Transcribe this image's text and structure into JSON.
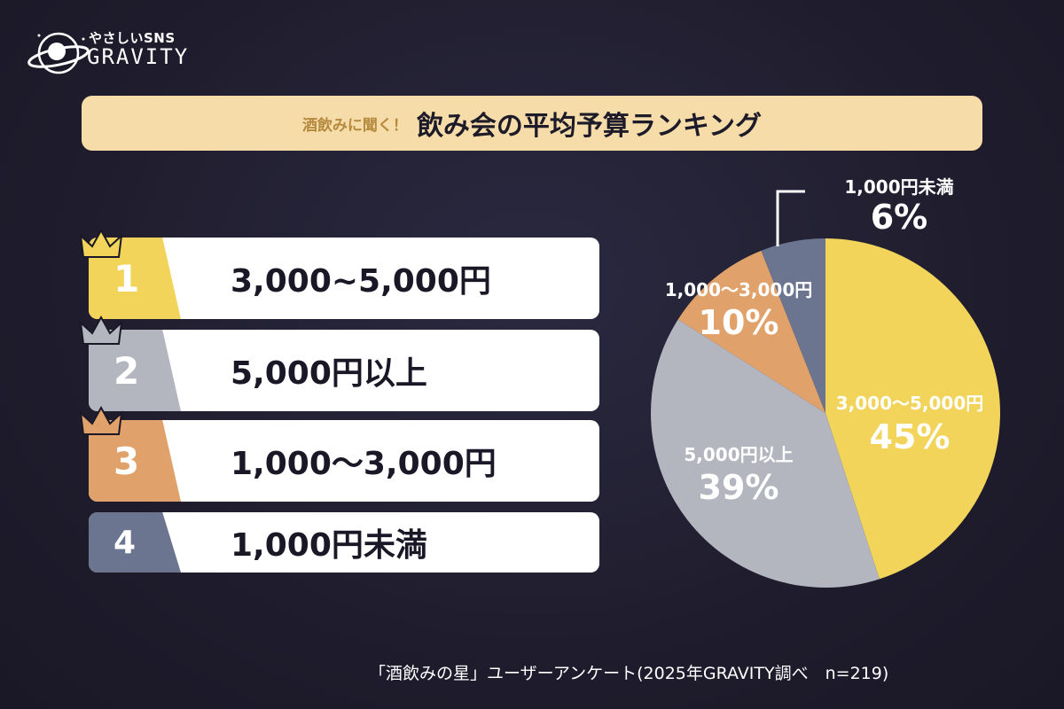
{
  "brand": {
    "tagline": "やさしいSNS",
    "name": "GRAVITY",
    "icon": "planet-icon"
  },
  "header": {
    "pre_title": "酒飲みに聞く！",
    "title": "飲み会の平均予算ランキング"
  },
  "ranking": [
    {
      "rank": "1",
      "label": "3,000~5,000円",
      "color": "#f2d45a",
      "crown_color": "#f2d45a"
    },
    {
      "rank": "2",
      "label": "5,000円以上",
      "color": "#b3b6bf",
      "crown_color": "#b3b6bf"
    },
    {
      "rank": "3",
      "label": "1,000〜3,000円",
      "color": "#e0a26a",
      "crown_color": "#e0a26a"
    },
    {
      "rank": "4",
      "label": "1,000円未満",
      "color": "#6b7590",
      "crown_color": null
    }
  ],
  "chart_data": {
    "type": "pie",
    "title": "",
    "slices": [
      {
        "label": "3,000〜5,000円",
        "percent_label": "45%",
        "value": 45,
        "color": "#f2d45a"
      },
      {
        "label": "5,000円以上",
        "percent_label": "39%",
        "value": 39,
        "color": "#b3b6bf"
      },
      {
        "label": "1,000〜3,000円",
        "percent_label": "10%",
        "value": 10,
        "color": "#e0a26a"
      },
      {
        "label": "1,000円未満",
        "percent_label": "6%",
        "value": 6,
        "color": "#6b7590"
      }
    ],
    "start": "top",
    "direction": "clockwise"
  },
  "footer": {
    "source": "「酒飲みの星」ユーザーアンケート(2025年GRAVITY調べ　n=219)"
  }
}
